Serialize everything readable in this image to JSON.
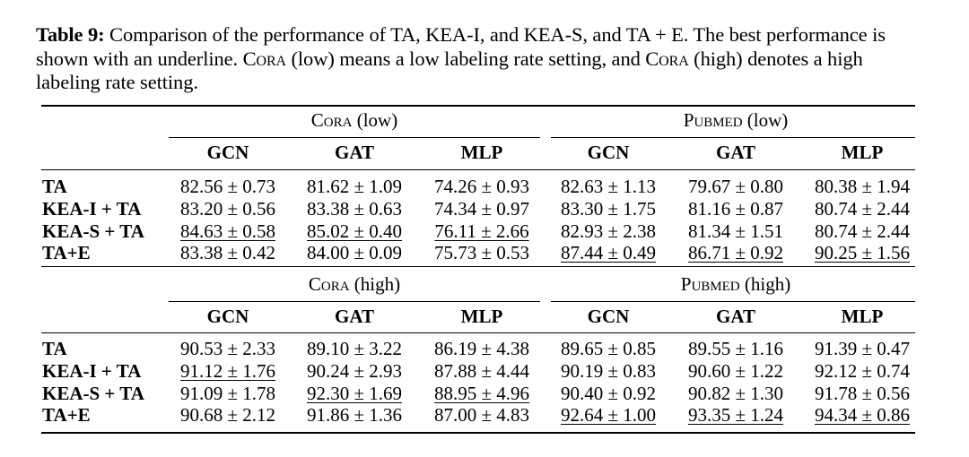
{
  "caption": {
    "label": "Table 9:",
    "part1": " Comparison of the performance of TA, KEA-I, and KEA-S, and TA + E. The best performance is shown with an underline. ",
    "cora_word": "Cora",
    "part2": " (low) means a low labeling rate setting, and ",
    "cora_word2": "Cora",
    "part3": " (high) denotes a high labeling rate setting."
  },
  "sections": [
    {
      "groups": [
        {
          "dataset": "Cora",
          "setting": " (low)"
        },
        {
          "dataset": "Pubmed",
          "setting": " (low)"
        }
      ],
      "columns": [
        "GCN",
        "GAT",
        "MLP",
        "GCN",
        "GAT",
        "MLP"
      ],
      "rows": [
        {
          "label": "TA",
          "cells": [
            {
              "v": "82.56 ± 0.73",
              "u": false
            },
            {
              "v": "81.62 ± 1.09",
              "u": false
            },
            {
              "v": "74.26 ± 0.93",
              "u": false
            },
            {
              "v": "82.63 ± 1.13",
              "u": false
            },
            {
              "v": "79.67 ± 0.80",
              "u": false
            },
            {
              "v": "80.38 ± 1.94",
              "u": false
            }
          ]
        },
        {
          "label": "KEA-I + TA",
          "cells": [
            {
              "v": "83.20 ± 0.56",
              "u": false
            },
            {
              "v": "83.38 ± 0.63",
              "u": false
            },
            {
              "v": "74.34 ± 0.97",
              "u": false
            },
            {
              "v": "83.30 ± 1.75",
              "u": false
            },
            {
              "v": "81.16 ± 0.87",
              "u": false
            },
            {
              "v": "80.74 ± 2.44",
              "u": false
            }
          ]
        },
        {
          "label": "KEA-S + TA",
          "cells": [
            {
              "v": "84.63 ± 0.58",
              "u": true
            },
            {
              "v": "85.02 ± 0.40",
              "u": true
            },
            {
              "v": "76.11 ± 2.66",
              "u": true
            },
            {
              "v": "82.93 ± 2.38",
              "u": false
            },
            {
              "v": "81.34 ± 1.51",
              "u": false
            },
            {
              "v": "80.74 ± 2.44",
              "u": false
            }
          ]
        },
        {
          "label": "TA+E",
          "cells": [
            {
              "v": "83.38 ± 0.42",
              "u": false
            },
            {
              "v": "84.00 ± 0.09",
              "u": false
            },
            {
              "v": "75.73 ± 0.53",
              "u": false
            },
            {
              "v": "87.44 ± 0.49",
              "u": true
            },
            {
              "v": "86.71 ± 0.92",
              "u": true
            },
            {
              "v": "90.25 ± 1.56",
              "u": true
            }
          ]
        }
      ]
    },
    {
      "groups": [
        {
          "dataset": "Cora",
          "setting": " (high)"
        },
        {
          "dataset": "Pubmed",
          "setting": " (high)"
        }
      ],
      "columns": [
        "GCN",
        "GAT",
        "MLP",
        "GCN",
        "GAT",
        "MLP"
      ],
      "rows": [
        {
          "label": "TA",
          "cells": [
            {
              "v": "90.53 ± 2.33",
              "u": false
            },
            {
              "v": "89.10 ± 3.22",
              "u": false
            },
            {
              "v": "86.19 ± 4.38",
              "u": false
            },
            {
              "v": "89.65 ± 0.85",
              "u": false
            },
            {
              "v": "89.55 ± 1.16",
              "u": false
            },
            {
              "v": "91.39 ± 0.47",
              "u": false
            }
          ]
        },
        {
          "label": "KEA-I + TA",
          "cells": [
            {
              "v": "91.12 ± 1.76",
              "u": true
            },
            {
              "v": "90.24 ± 2.93",
              "u": false
            },
            {
              "v": "87.88 ± 4.44",
              "u": false
            },
            {
              "v": "90.19 ± 0.83",
              "u": false
            },
            {
              "v": "90.60 ± 1.22",
              "u": false
            },
            {
              "v": "92.12 ± 0.74",
              "u": false
            }
          ]
        },
        {
          "label": "KEA-S + TA",
          "cells": [
            {
              "v": "91.09 ± 1.78",
              "u": false
            },
            {
              "v": "92.30 ± 1.69",
              "u": true
            },
            {
              "v": "88.95 ± 4.96",
              "u": true
            },
            {
              "v": "90.40 ± 0.92",
              "u": false
            },
            {
              "v": "90.82 ± 1.30",
              "u": false
            },
            {
              "v": "91.78 ± 0.56",
              "u": false
            }
          ]
        },
        {
          "label": "TA+E",
          "cells": [
            {
              "v": "90.68 ± 2.12",
              "u": false
            },
            {
              "v": "91.86 ± 1.36",
              "u": false
            },
            {
              "v": "87.00 ± 4.83",
              "u": false
            },
            {
              "v": "92.64 ± 1.00",
              "u": true
            },
            {
              "v": "93.35 ± 1.24",
              "u": true
            },
            {
              "v": "94.34 ± 0.86",
              "u": true
            }
          ]
        }
      ]
    }
  ]
}
